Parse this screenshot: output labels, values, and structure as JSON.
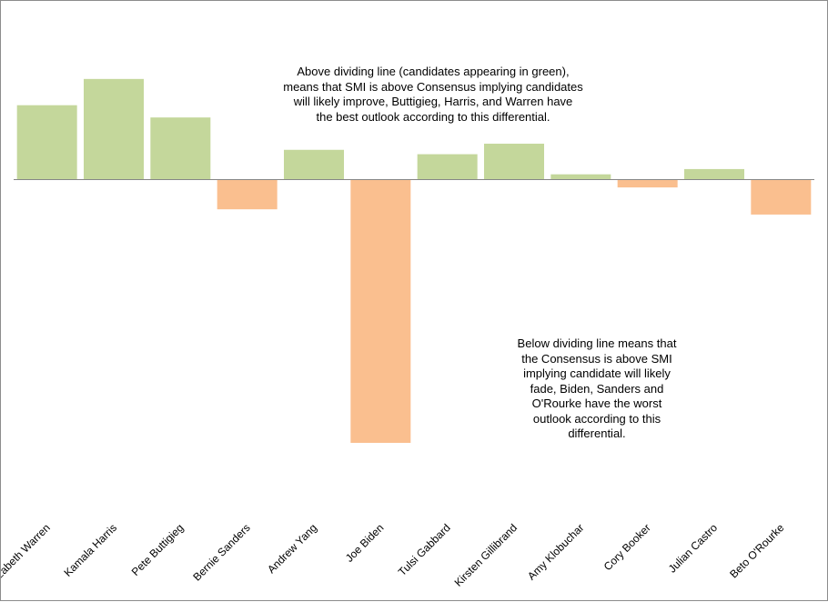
{
  "chart_data": {
    "type": "bar",
    "categories": [
      "Elizabeth Warren",
      "Kamala Harris",
      "Pete Buttigieg",
      "Bernie Sanders",
      "Andrew Yang",
      "Joe Biden",
      "Tulsi Gabbard",
      "Kirsten Gillibrand",
      "Amy Klobuchar",
      "Cory Booker",
      "Julian Castro",
      "Beto O'Rourke"
    ],
    "values": [
      8.5,
      11.5,
      7.1,
      -3.4,
      3.4,
      -30.1,
      2.9,
      4.1,
      0.6,
      -0.9,
      1.2,
      -4.0
    ],
    "ylim": [
      -38,
      19.8
    ],
    "positive_color": "#c4d79b",
    "negative_color": "#fabf8f",
    "axis_color": "#868686",
    "grid": false,
    "legend": "none",
    "annotations": [
      "Above dividing line (candidates appearing in green),\nmeans that SMI is above Consensus implying candidates\nwill likely improve, Buttigieg, Harris, and Warren have\nthe best outlook according to this differential.",
      "Below dividing line means that\nthe Consensus is above SMI\nimplying candidate will likely\nfade, Biden, Sanders and\nO'Rourke have the worst\noutlook according to this\ndifferential."
    ]
  }
}
